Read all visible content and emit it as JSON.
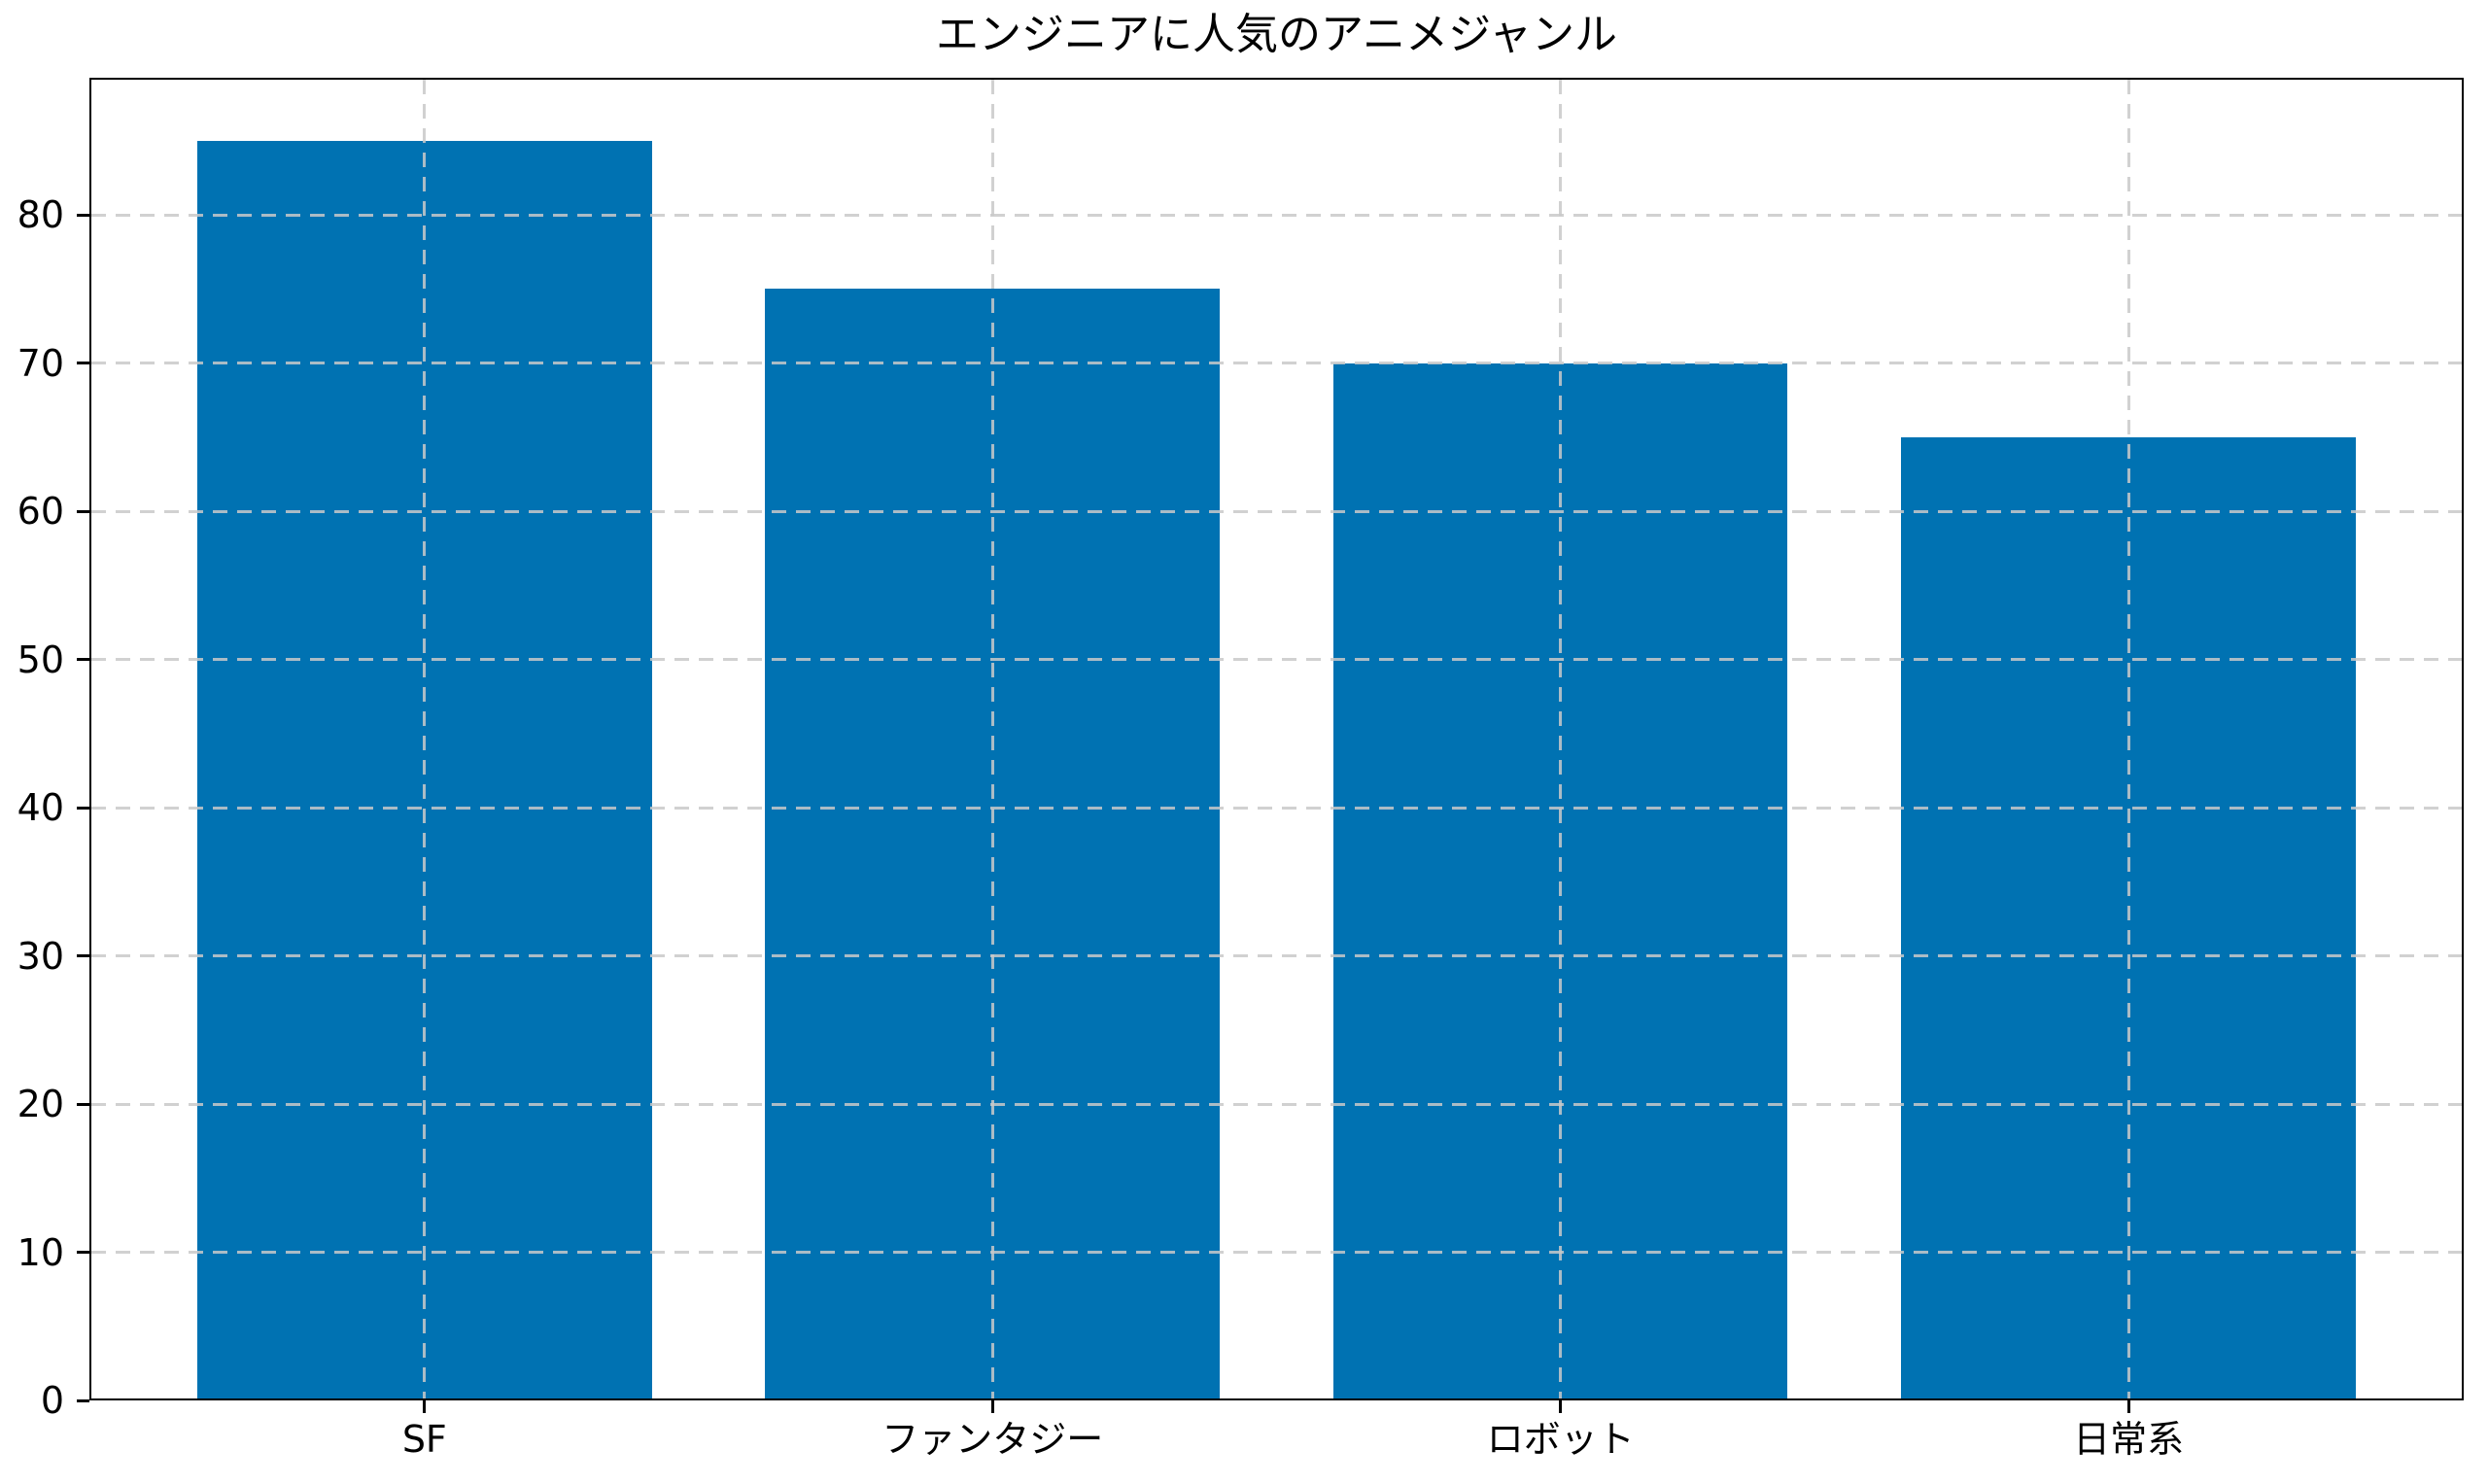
{
  "chart_data": {
    "type": "bar",
    "title": "エンジニアに人気のアニメジャンル",
    "categories": [
      "SF",
      "ファンタジー",
      "ロボット",
      "日常系"
    ],
    "values": [
      85,
      75,
      70,
      65
    ],
    "xlabel": "",
    "ylabel": "",
    "ylim": [
      0,
      89.25
    ],
    "yticks": [
      0,
      10,
      20,
      30,
      40,
      50,
      60,
      70,
      80
    ],
    "bar_width_fraction": 0.8,
    "grid": {
      "visible": true,
      "line_style": "dashed",
      "axes": "both",
      "drawn_above_bars": true
    },
    "legend": null,
    "colors": {
      "bar": "#0072b2",
      "grid": "#c9c9c9",
      "spine": "#000000",
      "text": "#000000",
      "background": "#ffffff"
    }
  }
}
